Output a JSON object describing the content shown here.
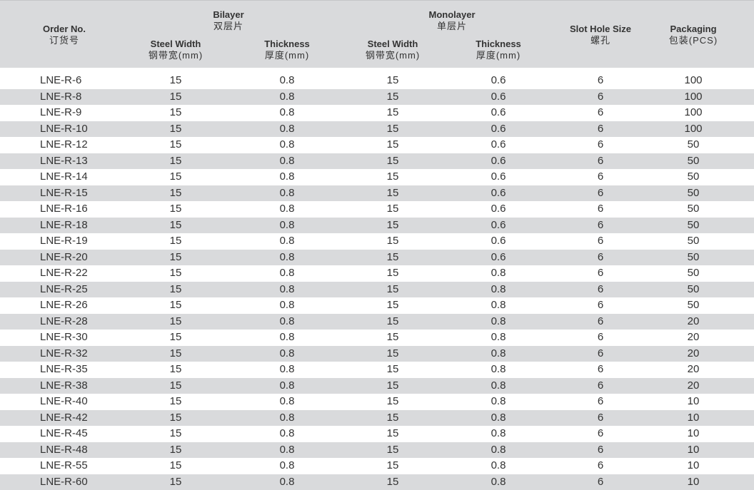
{
  "headers": {
    "order_no": {
      "en": "Order No.",
      "zh": "订货号"
    },
    "bilayer": {
      "en": "Bilayer",
      "zh": "双层片"
    },
    "monolayer": {
      "en": "Monolayer",
      "zh": "单层片"
    },
    "bi_width": {
      "en": "Steel Width",
      "zh": "钢带宽(mm)"
    },
    "bi_thick": {
      "en": "Thickness",
      "zh": "厚度(mm)"
    },
    "mono_width": {
      "en": "Steel Width",
      "zh": "钢带宽(mm)"
    },
    "mono_thick": {
      "en": "Thickness",
      "zh": "厚度(mm)"
    },
    "slot": {
      "en": "Slot Hole Size",
      "zh": "螺孔"
    },
    "packaging": {
      "en": "Packaging",
      "zh": "包装(PCS)"
    }
  },
  "rows": [
    [
      "LNE-R-6",
      "15",
      "0.8",
      "15",
      "0.6",
      "6",
      "100"
    ],
    [
      "LNE-R-8",
      "15",
      "0.8",
      "15",
      "0.6",
      "6",
      "100"
    ],
    [
      "LNE-R-9",
      "15",
      "0.8",
      "15",
      "0.6",
      "6",
      "100"
    ],
    [
      "LNE-R-10",
      "15",
      "0.8",
      "15",
      "0.6",
      "6",
      "100"
    ],
    [
      "LNE-R-12",
      "15",
      "0.8",
      "15",
      "0.6",
      "6",
      "50"
    ],
    [
      "LNE-R-13",
      "15",
      "0.8",
      "15",
      "0.6",
      "6",
      "50"
    ],
    [
      "LNE-R-14",
      "15",
      "0.8",
      "15",
      "0.6",
      "6",
      "50"
    ],
    [
      "LNE-R-15",
      "15",
      "0.8",
      "15",
      "0.6",
      "6",
      "50"
    ],
    [
      "LNE-R-16",
      "15",
      "0.8",
      "15",
      "0.6",
      "6",
      "50"
    ],
    [
      "LNE-R-18",
      "15",
      "0.8",
      "15",
      "0.6",
      "6",
      "50"
    ],
    [
      "LNE-R-19",
      "15",
      "0.8",
      "15",
      "0.6",
      "6",
      "50"
    ],
    [
      "LNE-R-20",
      "15",
      "0.8",
      "15",
      "0.6",
      "6",
      "50"
    ],
    [
      "LNE-R-22",
      "15",
      "0.8",
      "15",
      "0.8",
      "6",
      "50"
    ],
    [
      "LNE-R-25",
      "15",
      "0.8",
      "15",
      "0.8",
      "6",
      "50"
    ],
    [
      "LNE-R-26",
      "15",
      "0.8",
      "15",
      "0.8",
      "6",
      "50"
    ],
    [
      "LNE-R-28",
      "15",
      "0.8",
      "15",
      "0.8",
      "6",
      "20"
    ],
    [
      "LNE-R-30",
      "15",
      "0.8",
      "15",
      "0.8",
      "6",
      "20"
    ],
    [
      "LNE-R-32",
      "15",
      "0.8",
      "15",
      "0.8",
      "6",
      "20"
    ],
    [
      "LNE-R-35",
      "15",
      "0.8",
      "15",
      "0.8",
      "6",
      "20"
    ],
    [
      "LNE-R-38",
      "15",
      "0.8",
      "15",
      "0.8",
      "6",
      "20"
    ],
    [
      "LNE-R-40",
      "15",
      "0.8",
      "15",
      "0.8",
      "6",
      "10"
    ],
    [
      "LNE-R-42",
      "15",
      "0.8",
      "15",
      "0.8",
      "6",
      "10"
    ],
    [
      "LNE-R-45",
      "15",
      "0.8",
      "15",
      "0.8",
      "6",
      "10"
    ],
    [
      "LNE-R-48",
      "15",
      "0.8",
      "15",
      "0.8",
      "6",
      "10"
    ],
    [
      "LNE-R-55",
      "15",
      "0.8",
      "15",
      "0.8",
      "6",
      "10"
    ],
    [
      "LNE-R-60",
      "15",
      "0.8",
      "15",
      "0.8",
      "6",
      "10"
    ]
  ],
  "colors": {
    "header_bg": "#d9dadc",
    "stripe_bg": "#d9dadc",
    "text": "#333333"
  }
}
